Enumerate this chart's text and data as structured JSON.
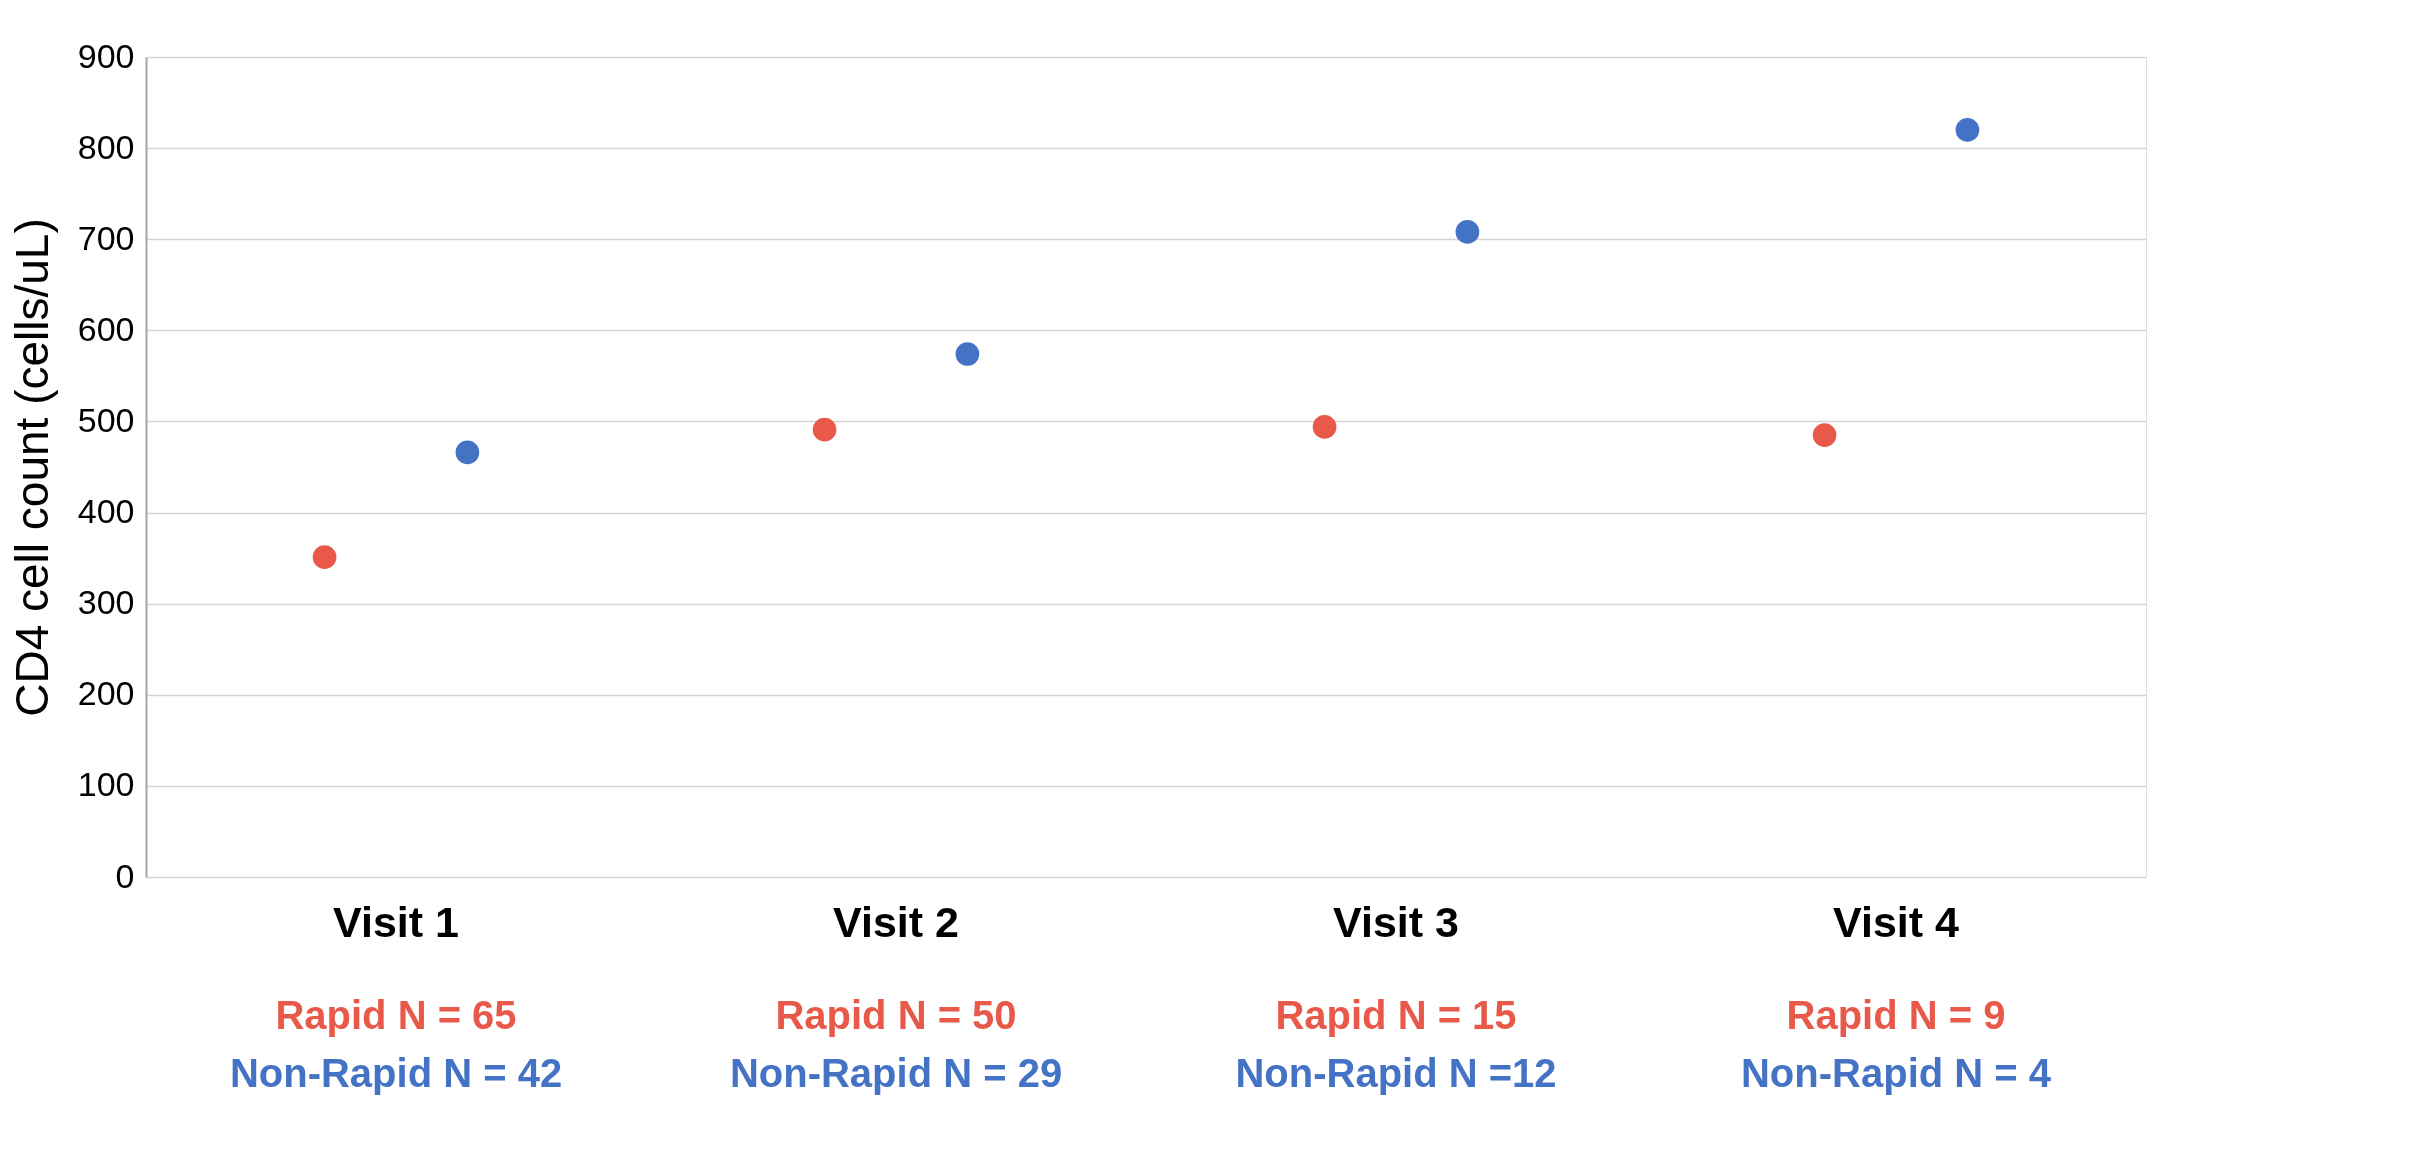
{
  "chart_data": {
    "type": "scatter",
    "ylabel": "CD4 cell count (cells/uL)",
    "categories": [
      "Visit 1",
      "Visit 2",
      "Visit 3",
      "Visit 4"
    ],
    "series": [
      {
        "color": "#e8594a",
        "values": [
          351,
          491,
          494,
          485
        ]
      },
      {
        "color": "#4472c4",
        "values": [
          466,
          574,
          708,
          820
        ]
      }
    ],
    "ylim": [
      0,
      900
    ],
    "yticks": [
      0,
      100,
      200,
      300,
      400,
      500,
      600,
      700,
      800,
      900
    ],
    "grid": "y",
    "marker": "circle",
    "annotations": [
      "Rapid N = 65",
      "Non-Rapid N = 42",
      "Rapid N = 50",
      "Non-Rapid N = 29",
      "Rapid N = 15",
      "Non-Rapid N =12",
      "Rapid N = 9",
      "Non-Rapid N = 4"
    ]
  }
}
